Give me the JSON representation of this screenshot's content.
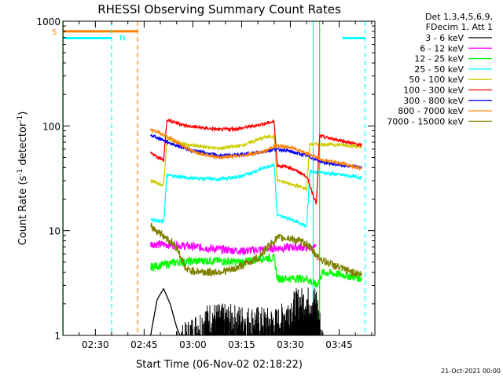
{
  "chart_data": {
    "type": "line",
    "title": "RHESSI Observing Summary Count Rates",
    "xlabel": "Start Time (06-Nov-02 02:18:22)",
    "ylabel_main": "Count Rate (s",
    "ylabel_sup1": "-1",
    "ylabel_mid": " detector",
    "ylabel_sup2": "-1",
    "ylabel_end": ")",
    "footer": "21-Oct-2021 00:00",
    "yscale": "log",
    "ylim": [
      1,
      1000
    ],
    "xlim_min": [
      0,
      96
    ],
    "x_ticks": [
      {
        "t": 10,
        "label": "02:30"
      },
      {
        "t": 25,
        "label": "02:45"
      },
      {
        "t": 40,
        "label": "03:00"
      },
      {
        "t": 55,
        "label": "03:15"
      },
      {
        "t": 70,
        "label": "03:30"
      },
      {
        "t": 85,
        "label": "03:45"
      }
    ],
    "y_ticks": [
      {
        "v": 1,
        "label": "1"
      },
      {
        "v": 10,
        "label": "10"
      },
      {
        "v": 100,
        "label": "100"
      },
      {
        "v": 1000,
        "label": "1000"
      }
    ],
    "legend_header": [
      "Det 1,3,4,5,6,9,",
      "FDecim 1, Att 1"
    ],
    "legend_placement": "right",
    "series": [
      {
        "name": "3 - 6 keV",
        "color": "#000000",
        "points": [
          [
            27,
            1
          ],
          [
            29,
            2.2
          ],
          [
            31,
            2.8
          ],
          [
            33,
            2.0
          ],
          [
            35,
            1.2
          ],
          [
            36,
            1
          ]
        ],
        "noisy_block": [
          [
            35,
            1
          ],
          [
            45,
            1.8
          ],
          [
            66,
            1.6
          ],
          [
            72,
            2.5
          ],
          [
            78,
            2.6
          ],
          [
            80,
            1
          ]
        ]
      },
      {
        "name": "6 - 12 keV",
        "color": "#ff00ff",
        "points": [
          [
            27,
            7.5
          ],
          [
            35,
            7.3
          ],
          [
            45,
            6.8
          ],
          [
            55,
            6.4
          ],
          [
            65,
            6.8
          ],
          [
            72,
            7.0
          ],
          [
            78,
            6.8
          ]
        ]
      },
      {
        "name": "12 - 25 keV",
        "color": "#00ff00",
        "points": [
          [
            27,
            4.5
          ],
          [
            35,
            5.0
          ],
          [
            45,
            5.2
          ],
          [
            55,
            5.0
          ],
          [
            62,
            5.5
          ],
          [
            65,
            5.5
          ],
          [
            66,
            3.5
          ],
          [
            75,
            3.5
          ],
          [
            78,
            3.0
          ],
          [
            80,
            4.0
          ],
          [
            86,
            3.8
          ],
          [
            92,
            3.5
          ]
        ]
      },
      {
        "name": "25 - 50 keV",
        "color": "#00ffff",
        "points": [
          [
            27,
            13
          ],
          [
            31,
            12
          ],
          [
            32,
            34
          ],
          [
            38,
            32
          ],
          [
            48,
            31
          ],
          [
            55,
            33
          ],
          [
            62,
            40
          ],
          [
            65,
            43
          ],
          [
            66,
            14
          ],
          [
            70,
            13
          ],
          [
            75,
            11
          ],
          [
            76,
            37
          ],
          [
            86,
            34
          ],
          [
            92,
            32
          ]
        ]
      },
      {
        "name": "50 - 100 keV",
        "color": "#cccc00",
        "points": [
          [
            27,
            30
          ],
          [
            31,
            27
          ],
          [
            32,
            75
          ],
          [
            38,
            66
          ],
          [
            48,
            61
          ],
          [
            55,
            65
          ],
          [
            62,
            78
          ],
          [
            65,
            80
          ],
          [
            66,
            30
          ],
          [
            70,
            28
          ],
          [
            75,
            25
          ],
          [
            76,
            67
          ],
          [
            86,
            66
          ],
          [
            92,
            63
          ]
        ]
      },
      {
        "name": "100 - 300 keV",
        "color": "#ff0000",
        "points": [
          [
            27,
            55
          ],
          [
            31,
            47
          ],
          [
            32,
            115
          ],
          [
            38,
            100
          ],
          [
            48,
            92
          ],
          [
            55,
            95
          ],
          [
            62,
            105
          ],
          [
            65,
            110
          ],
          [
            66,
            42
          ],
          [
            70,
            40
          ],
          [
            75,
            33
          ],
          [
            78,
            18
          ],
          [
            79,
            80
          ],
          [
            86,
            72
          ],
          [
            92,
            65
          ]
        ]
      },
      {
        "name": "300 - 800 keV",
        "color": "#0000ff",
        "points": [
          [
            27,
            82
          ],
          [
            30,
            75
          ],
          [
            35,
            65
          ],
          [
            40,
            58
          ],
          [
            48,
            52
          ],
          [
            55,
            53
          ],
          [
            62,
            57
          ],
          [
            65,
            60
          ],
          [
            68,
            59
          ],
          [
            72,
            55
          ],
          [
            75,
            52
          ],
          [
            80,
            45
          ],
          [
            86,
            42
          ],
          [
            92,
            40
          ]
        ]
      },
      {
        "name": "800 - 7000 keV",
        "color": "#ff8000",
        "points": [
          [
            27,
            92
          ],
          [
            30,
            86
          ],
          [
            35,
            70
          ],
          [
            40,
            57
          ],
          [
            48,
            50
          ],
          [
            55,
            52
          ],
          [
            62,
            57
          ],
          [
            65,
            64
          ],
          [
            68,
            64
          ],
          [
            72,
            60
          ],
          [
            75,
            55
          ],
          [
            80,
            47
          ],
          [
            86,
            44
          ],
          [
            92,
            39
          ]
        ]
      },
      {
        "name": "7000 - 15000 keV",
        "color": "#808000",
        "points": [
          [
            27,
            11
          ],
          [
            31,
            9
          ],
          [
            35,
            7
          ],
          [
            38,
            4.2
          ],
          [
            45,
            4.0
          ],
          [
            52,
            4.2
          ],
          [
            60,
            5.5
          ],
          [
            64,
            7.5
          ],
          [
            66,
            8.5
          ],
          [
            70,
            8.5
          ],
          [
            75,
            7.5
          ],
          [
            78,
            5.8
          ],
          [
            80,
            5.2
          ],
          [
            86,
            4.3
          ],
          [
            92,
            3.8
          ]
        ]
      }
    ],
    "annotations": [
      {
        "text": "S",
        "color": "#ff8000",
        "t": 0,
        "v": 800
      },
      {
        "text": "N",
        "color": "#00ffff",
        "t": 16,
        "v": 700
      }
    ],
    "state_lines": [
      {
        "color": "#ff8000",
        "dashed": false,
        "segments": [
          [
            0,
            800
          ],
          [
            23,
            800
          ]
        ]
      },
      {
        "color": "#00ffff",
        "dashed": false,
        "segments": [
          [
            0,
            690
          ],
          [
            15,
            690
          ]
        ]
      },
      {
        "color": "#00ffff",
        "dashed": false,
        "segments": [
          [
            86,
            690
          ],
          [
            93,
            690
          ]
        ]
      },
      {
        "color": "#00ffff",
        "dashed": true,
        "vertical": 15
      },
      {
        "color": "#ff8000",
        "dashed": true,
        "vertical": 23
      },
      {
        "color": "#00ffff",
        "dashed": true,
        "vertical": 93
      },
      {
        "color": "#00ffff",
        "dashed": false,
        "vertical": 77
      },
      {
        "color": "#00ff00",
        "dashed": false,
        "vertical": 0.1
      },
      {
        "color": "#00ff00",
        "dashed": false,
        "vertical": 79
      }
    ]
  }
}
